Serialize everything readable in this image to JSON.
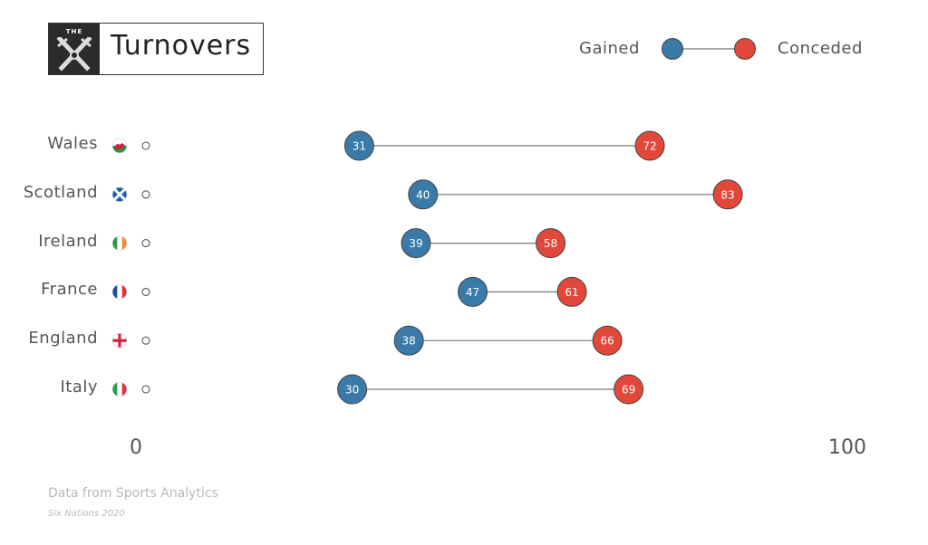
{
  "header": {
    "logo_text": "THE",
    "title": "Turnovers"
  },
  "legend": {
    "gained_label": "Gained",
    "conceded_label": "Conceded"
  },
  "colors": {
    "gained": "#3a7aa8",
    "conceded": "#e2483a",
    "line": "#777777"
  },
  "chart_data": {
    "type": "dumbbell",
    "title": "Turnovers",
    "xlim": [
      0,
      100
    ],
    "tick_labels": [
      "0",
      "100"
    ],
    "categories": [
      "Wales",
      "Scotland",
      "Ireland",
      "France",
      "England",
      "Italy"
    ],
    "flag_icons": [
      "wales-flag-icon",
      "scotland-flag-icon",
      "ireland-flag-icon",
      "france-flag-icon",
      "england-flag-icon",
      "italy-flag-icon"
    ],
    "series": [
      {
        "name": "Gained",
        "values": [
          31,
          40,
          39,
          47,
          38,
          30
        ]
      },
      {
        "name": "Conceded",
        "values": [
          72,
          83,
          58,
          61,
          66,
          69
        ]
      }
    ]
  },
  "footer": {
    "source": "Data from Sports Analytics",
    "subsource": "Six Nations 2020"
  }
}
